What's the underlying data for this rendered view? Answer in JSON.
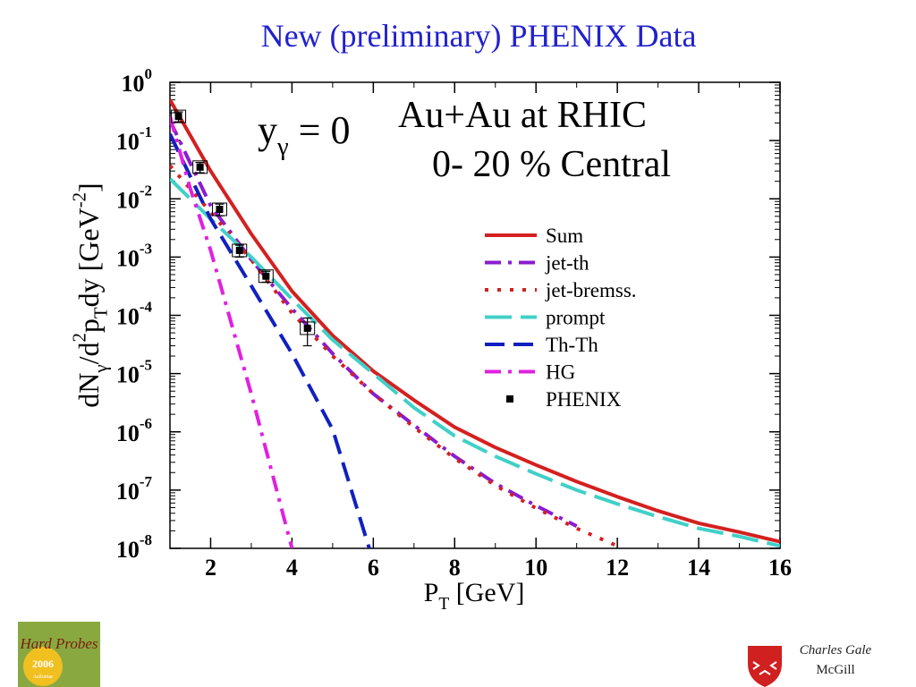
{
  "chart_data": {
    "type": "line",
    "title": "New (preliminary) PHENIX Data",
    "x_label": [
      {
        "text": "P"
      },
      {
        "text": "T",
        "shift": "sub"
      },
      {
        "text": " [GeV]"
      }
    ],
    "y_label": [
      {
        "text": "dN"
      },
      {
        "text": "γ",
        "shift": "sub"
      },
      {
        "text": "/d"
      },
      {
        "text": "2",
        "shift": "sup"
      },
      {
        "text": "p"
      },
      {
        "text": "T",
        "shift": "sub"
      },
      {
        "text": "dy [GeV"
      },
      {
        "text": "-2",
        "shift": "sup"
      },
      {
        "text": "]"
      }
    ],
    "annotations": [
      [
        {
          "text": "y"
        },
        {
          "text": "γ",
          "shift": "sub"
        },
        {
          "text": " = 0"
        }
      ],
      [
        {
          "text": "Au+Au at RHIC"
        }
      ],
      [
        {
          "text": "0- 20 % Central"
        }
      ]
    ],
    "log_y": true,
    "legend": "right",
    "xlim": [
      1,
      16
    ],
    "xticks": [
      2,
      4,
      6,
      8,
      10,
      12,
      14,
      16
    ],
    "ylim": [
      1e-08,
      1
    ],
    "yticks": [
      {
        "value": 1,
        "label": "10",
        "exponent": "0"
      },
      {
        "value": 0.1,
        "label": "10",
        "exponent": "-1"
      },
      {
        "value": 0.01,
        "label": "10",
        "exponent": "-2"
      },
      {
        "value": 0.001,
        "label": "10",
        "exponent": "-3"
      },
      {
        "value": 0.0001,
        "label": "10",
        "exponent": "-4"
      },
      {
        "value": 1e-05,
        "label": "10",
        "exponent": "-5"
      },
      {
        "value": 1e-06,
        "label": "10",
        "exponent": "-6"
      },
      {
        "value": 1e-07,
        "label": "10",
        "exponent": "-7"
      },
      {
        "value": 1e-08,
        "label": "10",
        "exponent": "-8"
      }
    ],
    "series": [
      {
        "name": "Sum",
        "color": "#d42020",
        "style": "solid",
        "x": [
          1,
          2,
          3,
          4,
          5,
          6,
          7,
          8,
          9,
          10,
          11,
          12,
          13,
          14,
          15,
          16
        ],
        "values": [
          0.5,
          0.03,
          0.0025,
          0.00026,
          4.5e-05,
          1.1e-05,
          3.5e-06,
          1.2e-06,
          5.4e-07,
          2.7e-07,
          1.4e-07,
          7.7e-08,
          4.4e-08,
          2.7e-08,
          1.9e-08,
          1.3e-08
        ]
      },
      {
        "name": "jet-th",
        "color": "#8a1ccf",
        "style": "dashdot",
        "x": [
          1,
          2,
          3,
          4,
          5,
          6,
          7,
          8,
          9,
          10,
          11
        ],
        "values": [
          0.22,
          0.0076,
          0.0009,
          0.00013,
          2.2e-05,
          4.5e-06,
          1.3e-06,
          3.8e-07,
          1.3e-07,
          5.4e-08,
          2.4e-08
        ]
      },
      {
        "name": "jet-bremss.",
        "color": "#d42020",
        "style": "dotted",
        "x": [
          1,
          2,
          3,
          4,
          5,
          6,
          7,
          8,
          9,
          10,
          11,
          12
        ],
        "values": [
          0.037,
          0.0059,
          0.0009,
          0.00011,
          2e-05,
          4.5e-06,
          1.2e-06,
          3.5e-07,
          1.2e-07,
          4.9e-08,
          2.2e-08,
          1.1e-08
        ]
      },
      {
        "name": "prompt",
        "color": "#40d0c8",
        "style": "longdash",
        "x": [
          1,
          2,
          3,
          4,
          5,
          6,
          7,
          8,
          9,
          10,
          11,
          12,
          13,
          14,
          15,
          16
        ],
        "values": [
          0.022,
          0.0045,
          0.001,
          0.00019,
          3.8e-05,
          1e-05,
          2.6e-06,
          8.5e-07,
          3.8e-07,
          1.9e-07,
          1e-07,
          5.8e-08,
          3.5e-08,
          2.2e-08,
          1.6e-08,
          1.1e-08
        ]
      },
      {
        "name": "Th-Th",
        "color": "#1020c0",
        "style": "dashed",
        "x": [
          1,
          2,
          3,
          4,
          5,
          5.9
        ],
        "values": [
          0.13,
          0.0045,
          0.00032,
          2.2e-05,
          1.1e-06,
          1e-08
        ]
      },
      {
        "name": "HG",
        "color": "#e020e0",
        "style": "dashdot",
        "x": [
          1,
          1.5,
          2,
          3,
          4
        ],
        "values": [
          0.26,
          0.015,
          0.0013,
          4.5e-06,
          1e-08
        ]
      },
      {
        "name": "PHENIX",
        "color": "#000000",
        "style": "marker",
        "x": [
          1.21,
          1.74,
          2.22,
          2.71,
          3.36,
          4.38
        ],
        "values": [
          0.26,
          0.035,
          0.0066,
          0.0013,
          0.00047,
          6e-05
        ],
        "errors": [
          0.05,
          0.007,
          0.0015,
          0.0003,
          0.0001,
          3e-05
        ]
      }
    ]
  },
  "footer": {
    "logo_title": "Hard Probes",
    "logo_year": "2006",
    "logo_place": "Asilomar",
    "author": "Charles Gale",
    "affiliation": "McGill"
  }
}
